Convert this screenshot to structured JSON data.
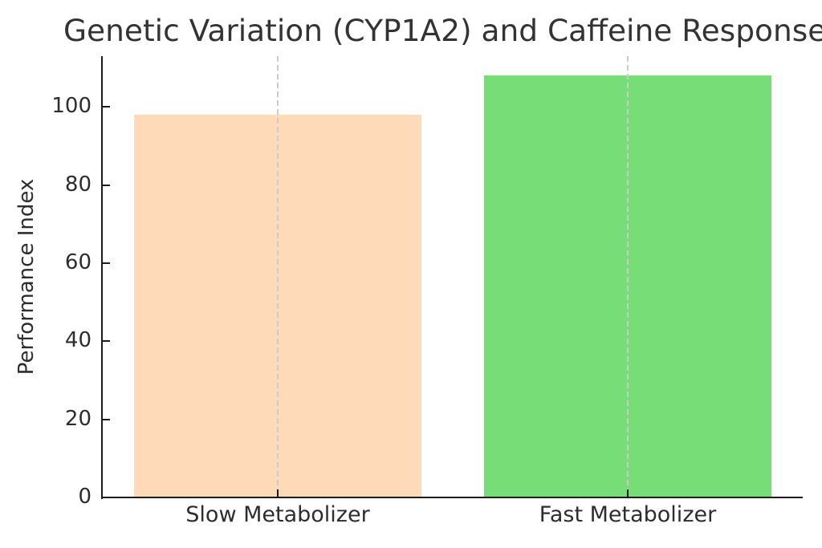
{
  "chart_data": {
    "type": "bar",
    "title": "Genetic Variation (CYP1A2) and Caffeine Response",
    "xlabel": "",
    "ylabel": "Performance Index",
    "categories": [
      "Slow Metabolizer",
      "Fast Metabolizer"
    ],
    "values": [
      98,
      108
    ],
    "bar_colors": [
      "#FFDAB9",
      "#77DD77"
    ],
    "yticks": [
      0,
      20,
      40,
      60,
      80,
      100
    ],
    "ylim": [
      0,
      113
    ],
    "grid": {
      "vertical_dashed_at_bar_centers": true,
      "color": "#cbcbcb"
    },
    "legend": "none",
    "axis_color": "#1c1c1c",
    "text_color": "#2d2d2d",
    "title_color": "#333333",
    "tick_direction": "in",
    "title_clipped_at_right_edge": true
  }
}
